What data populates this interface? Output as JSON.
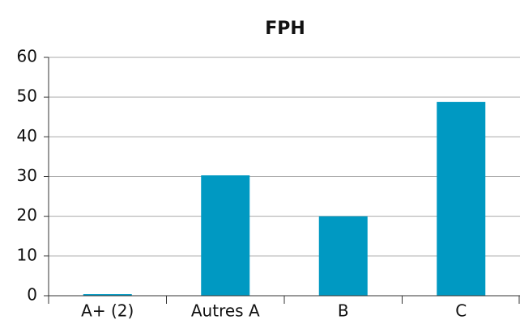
{
  "chart_data": {
    "type": "bar",
    "title": "FPH",
    "categories": [
      "A+ (2)",
      "Autres A",
      "B",
      "C"
    ],
    "values": [
      0.4,
      30.3,
      20,
      48.8
    ],
    "color": "#0099c2",
    "ylim": [
      0,
      60
    ],
    "yticks": [
      0,
      10,
      20,
      30,
      40,
      50,
      60
    ],
    "grid": true
  }
}
